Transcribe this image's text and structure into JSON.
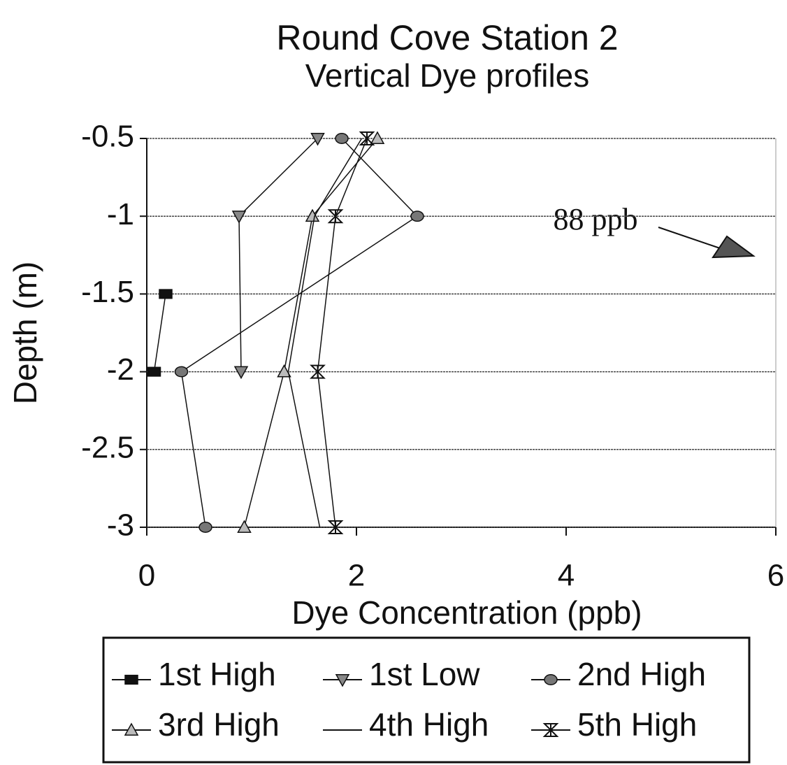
{
  "chart_data": {
    "type": "line",
    "title": "Round Cove Station 2",
    "subtitle": "Vertical Dye profiles",
    "x_label": "Dye Concentration (ppb)",
    "y_label": "Depth (m)",
    "annotation": "88 ppb",
    "xlim": [
      0,
      6
    ],
    "xticks": [
      0,
      2,
      4,
      6
    ],
    "ylim": [
      -3,
      -0.5
    ],
    "yticks": [
      -0.5,
      -1,
      -1.5,
      -2,
      -2.5,
      -3
    ],
    "grid": true,
    "series": [
      {
        "name": "1st High",
        "color": "#111111",
        "marker": "square",
        "x": [
          0.18,
          0.07
        ],
        "values": [
          -1.5,
          -2
        ]
      },
      {
        "name": "1st Low",
        "color": "#888888",
        "marker": "triangle-down",
        "x": [
          1.63,
          0.88,
          0.9
        ],
        "values": [
          -0.5,
          -1,
          -2
        ]
      },
      {
        "name": "2nd High",
        "color": "#777777",
        "marker": "circle",
        "x": [
          1.86,
          2.58,
          0.33,
          0.56
        ],
        "values": [
          -0.5,
          -1,
          -2,
          -3
        ]
      },
      {
        "name": "3rd High",
        "color": "#bbbbbb",
        "marker": "triangle-up",
        "x": [
          2.2,
          1.58,
          1.31,
          0.93
        ],
        "values": [
          -0.5,
          -1,
          -2,
          -3
        ]
      },
      {
        "name": "4th High",
        "color": "#111111",
        "marker": "plus",
        "x": [
          2.05,
          1.6,
          1.35,
          1.65
        ],
        "values": [
          -0.5,
          -1,
          -2,
          -3
        ]
      },
      {
        "name": "5th High",
        "color": "#111111",
        "marker": "bowtie",
        "x": [
          2.1,
          1.8,
          1.63,
          1.8
        ],
        "values": [
          -0.5,
          -1,
          -2,
          -3
        ]
      }
    ]
  }
}
